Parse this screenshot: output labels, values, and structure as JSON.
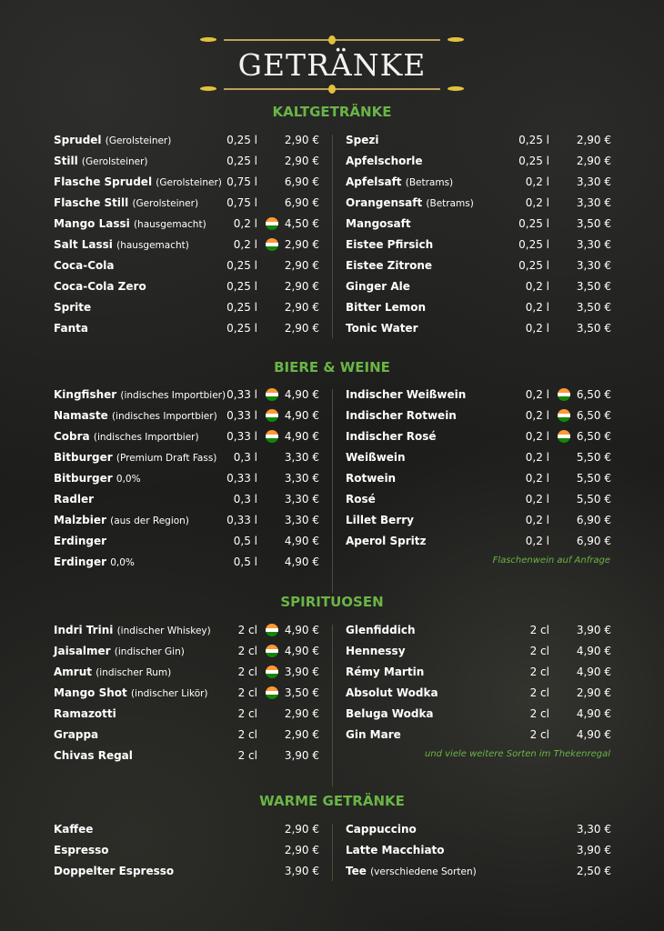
{
  "title": "GETRÄNKE",
  "colors": {
    "accent": "#6ab546",
    "ornament": "#e3c23a"
  },
  "sections": [
    {
      "heading": "KALTGETRÄNKE",
      "left": [
        {
          "name": "Sprudel",
          "note": "(Gerolsteiner)",
          "volume": "0,25 l",
          "flag": false,
          "price": "2,90 €"
        },
        {
          "name": "Still",
          "note": "(Gerolsteiner)",
          "volume": "0,25 l",
          "flag": false,
          "price": "2,90 €"
        },
        {
          "name": "Flasche Sprudel",
          "note": "(Gerolsteiner)",
          "volume": "0,75 l",
          "flag": false,
          "price": "6,90 €"
        },
        {
          "name": "Flasche Still",
          "note": "(Gerolsteiner)",
          "volume": "0,75 l",
          "flag": false,
          "price": "6,90 €"
        },
        {
          "name": "Mango Lassi",
          "note": "(hausgemacht)",
          "volume": "0,2 l",
          "flag": true,
          "price": "4,50 €"
        },
        {
          "name": "Salt Lassi",
          "note": "(hausgemacht)",
          "volume": "0,2 l",
          "flag": true,
          "price": "2,90 €"
        },
        {
          "name": "Coca-Cola",
          "note": "",
          "volume": "0,25 l",
          "flag": false,
          "price": "2,90 €"
        },
        {
          "name": "Coca-Cola Zero",
          "note": "",
          "volume": "0,25 l",
          "flag": false,
          "price": "2,90 €"
        },
        {
          "name": "Sprite",
          "note": "",
          "volume": "0,25 l",
          "flag": false,
          "price": "2,90 €"
        },
        {
          "name": "Fanta",
          "note": "",
          "volume": "0,25 l",
          "flag": false,
          "price": "2,90 €"
        }
      ],
      "right": [
        {
          "name": "Spezi",
          "note": "",
          "volume": "0,25 l",
          "flag": false,
          "price": "2,90 €"
        },
        {
          "name": "Apfelschorle",
          "note": "",
          "volume": "0,25 l",
          "flag": false,
          "price": "2,90 €"
        },
        {
          "name": "Apfelsaft",
          "note": "(Betrams)",
          "volume": "0,2 l",
          "flag": false,
          "price": "3,30 €"
        },
        {
          "name": "Orangensaft",
          "note": "(Betrams)",
          "volume": "0,2 l",
          "flag": false,
          "price": "3,30 €"
        },
        {
          "name": "Mangosaft",
          "note": "",
          "volume": "0,25 l",
          "flag": false,
          "price": "3,50 €"
        },
        {
          "name": "Eistee Pfirsich",
          "note": "",
          "volume": "0,25 l",
          "flag": false,
          "price": "3,30 €"
        },
        {
          "name": "Eistee Zitrone",
          "note": "",
          "volume": "0,25 l",
          "flag": false,
          "price": "3,30 €"
        },
        {
          "name": "Ginger Ale",
          "note": "",
          "volume": "0,2 l",
          "flag": false,
          "price": "3,50 €"
        },
        {
          "name": "Bitter Lemon",
          "note": "",
          "volume": "0,2 l",
          "flag": false,
          "price": "3,50 €"
        },
        {
          "name": "Tonic Water",
          "note": "",
          "volume": "0,2 l",
          "flag": false,
          "price": "3,50 €"
        }
      ],
      "footnote": ""
    },
    {
      "heading": "BIERE & WEINE",
      "left": [
        {
          "name": "Kingfisher",
          "note": "(indisches Importbier)",
          "volume": "0,33 l",
          "flag": true,
          "price": "4,90 €"
        },
        {
          "name": "Namaste",
          "note": "(indisches Importbier)",
          "volume": "0,33 l",
          "flag": true,
          "price": "4,90 €"
        },
        {
          "name": "Cobra",
          "note": "(indisches Importbier)",
          "volume": "0,33 l",
          "flag": true,
          "price": "4,90 €"
        },
        {
          "name": "Bitburger",
          "note": "(Premium Draft Fass)",
          "volume": "0,3 l",
          "flag": false,
          "price": "3,30 €"
        },
        {
          "name": "Bitburger",
          "note": "0,0%",
          "volume": "0,33 l",
          "flag": false,
          "price": "3,30 €"
        },
        {
          "name": "Radler",
          "note": "",
          "volume": "0,3 l",
          "flag": false,
          "price": "3,30 €"
        },
        {
          "name": "Malzbier",
          "note": "(aus der Region)",
          "volume": "0,33 l",
          "flag": false,
          "price": "3,30 €"
        },
        {
          "name": "Erdinger",
          "note": "",
          "volume": "0,5 l",
          "flag": false,
          "price": "4,90 €"
        },
        {
          "name": "Erdinger",
          "note": "0,0%",
          "volume": "0,5 l",
          "flag": false,
          "price": "4,90 €"
        }
      ],
      "right": [
        {
          "name": "Indischer Weißwein",
          "note": "",
          "volume": "0,2 l",
          "flag": true,
          "price": "6,50 €"
        },
        {
          "name": "Indischer Rotwein",
          "note": "",
          "volume": "0,2 l",
          "flag": true,
          "price": "6,50 €"
        },
        {
          "name": "Indischer Rosé",
          "note": "",
          "volume": "0,2 l",
          "flag": true,
          "price": "6,50 €"
        },
        {
          "name": "Weißwein",
          "note": "",
          "volume": "0,2 l",
          "flag": false,
          "price": "5,50 €"
        },
        {
          "name": "Rotwein",
          "note": "",
          "volume": "0,2 l",
          "flag": false,
          "price": "5,50 €"
        },
        {
          "name": "Rosé",
          "note": "",
          "volume": "0,2 l",
          "flag": false,
          "price": "5,50 €"
        },
        {
          "name": "Lillet Berry",
          "note": "",
          "volume": "0,2 l",
          "flag": false,
          "price": "6,90 €"
        },
        {
          "name": "Aperol Spritz",
          "note": "",
          "volume": "0,2 l",
          "flag": false,
          "price": "6,90 €"
        }
      ],
      "footnote": "Flaschenwein auf Anfrage"
    },
    {
      "heading": "SPIRITUOSEN",
      "left": [
        {
          "name": "Indri Trini",
          "note": "(indischer Whiskey)",
          "volume": "2 cl",
          "flag": true,
          "price": "4,90 €"
        },
        {
          "name": "Jaisalmer",
          "note": "(indischer Gin)",
          "volume": "2 cl",
          "flag": true,
          "price": "4,90 €"
        },
        {
          "name": "Amrut",
          "note": "(indischer Rum)",
          "volume": "2 cl",
          "flag": true,
          "price": "3,90 €"
        },
        {
          "name": "Mango Shot",
          "note": "(indischer Likör)",
          "volume": "2 cl",
          "flag": true,
          "price": "3,50 €"
        },
        {
          "name": "Ramazotti",
          "note": "",
          "volume": "2 cl",
          "flag": false,
          "price": "2,90 €"
        },
        {
          "name": "Grappa",
          "note": "",
          "volume": "2 cl",
          "flag": false,
          "price": "2,90 €"
        },
        {
          "name": "Chivas Regal",
          "note": "",
          "volume": "2 cl",
          "flag": false,
          "price": "3,90 €"
        }
      ],
      "right": [
        {
          "name": "Glenfiddich",
          "note": "",
          "volume": "2 cl",
          "flag": false,
          "price": "3,90 €"
        },
        {
          "name": "Hennessy",
          "note": "",
          "volume": "2 cl",
          "flag": false,
          "price": "4,90 €"
        },
        {
          "name": "Rémy Martin",
          "note": "",
          "volume": "2 cl",
          "flag": false,
          "price": "4,90 €"
        },
        {
          "name": "Absolut Wodka",
          "note": "",
          "volume": "2 cl",
          "flag": false,
          "price": "2,90 €"
        },
        {
          "name": "Beluga Wodka",
          "note": "",
          "volume": "2 cl",
          "flag": false,
          "price": "4,90 €"
        },
        {
          "name": "Gin Mare",
          "note": "",
          "volume": "2 cl",
          "flag": false,
          "price": "4,90 €"
        }
      ],
      "footnote": "und viele weitere Sorten im Thekenregal"
    },
    {
      "heading": "WARME GETRÄNKE",
      "left": [
        {
          "name": "Kaffee",
          "note": "",
          "volume": "",
          "flag": false,
          "price": "2,90 €"
        },
        {
          "name": "Espresso",
          "note": "",
          "volume": "",
          "flag": false,
          "price": "2,90 €"
        },
        {
          "name": "Doppelter Espresso",
          "note": "",
          "volume": "",
          "flag": false,
          "price": "3,90 €"
        }
      ],
      "right": [
        {
          "name": "Cappuccino",
          "note": "",
          "volume": "",
          "flag": false,
          "price": "3,30 €"
        },
        {
          "name": "Latte Macchiato",
          "note": "",
          "volume": "",
          "flag": false,
          "price": "3,90 €"
        },
        {
          "name": "Tee",
          "note": "(verschiedene Sorten)",
          "volume": "",
          "flag": false,
          "price": "2,50 €"
        }
      ],
      "footnote": ""
    }
  ]
}
